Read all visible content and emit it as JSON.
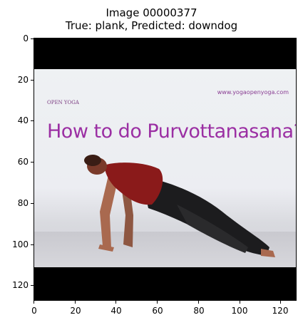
{
  "figure": {
    "title_line1": "Image 00000377",
    "title_line2": "True: plank, Predicted: downdog"
  },
  "image_text": {
    "logo": "OPEN YOGA",
    "url": "www.yogaopenyoga.com",
    "headline": "How to do Purvottanasana?"
  },
  "axes": {
    "xlim": [
      0,
      128
    ],
    "ylim": [
      128,
      0
    ],
    "x_ticks": [
      "0",
      "20",
      "40",
      "60",
      "80",
      "100",
      "120"
    ],
    "y_ticks": [
      "0",
      "20",
      "40",
      "60",
      "80",
      "100",
      "120"
    ]
  },
  "colors": {
    "headline": "#9b2fa3",
    "shirt": "#8a1a1a",
    "pants": "#1c1c1e",
    "skin": "#a9694f"
  }
}
